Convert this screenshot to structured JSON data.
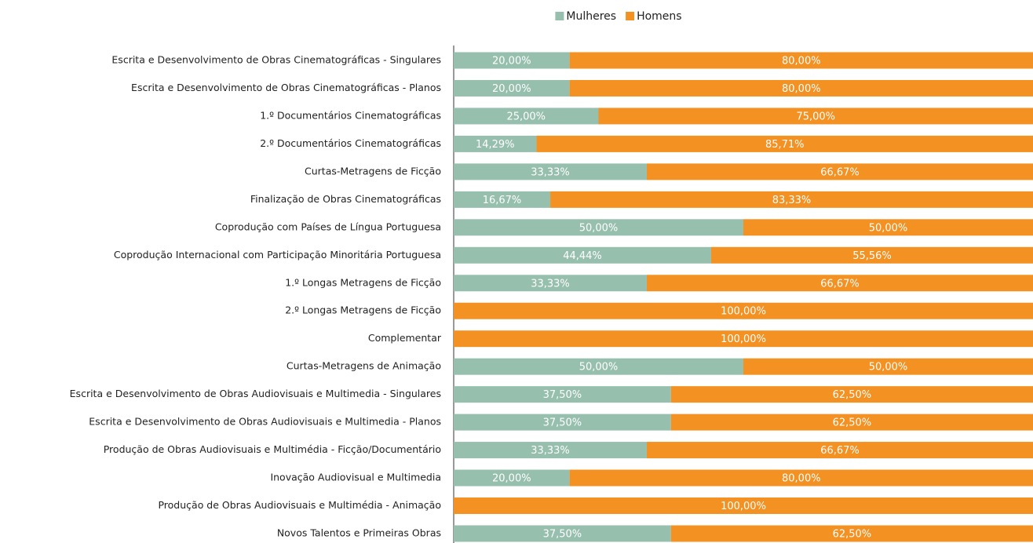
{
  "chart_data": {
    "type": "stacked-bar-horizontal",
    "categories": [
      "Escrita e Desenvolvimento de Obras Cinematográficas - Singulares",
      "Escrita e Desenvolvimento de Obras Cinematográficas - Planos",
      "1.º Documentários Cinematográficas",
      "2.º Documentários Cinematográficas",
      "Curtas-Metragens de Ficção",
      "Finalização de Obras Cinematográficas",
      "Coprodução com Países de Língua Portuguesa",
      "Coprodução Internacional com Participação Minoritária Portuguesa",
      "1.º Longas Metragens de Ficção",
      "2.º Longas Metragens de Ficção",
      "Complementar",
      "Curtas-Metragens de Animação",
      "Escrita e Desenvolvimento de Obras Audiovisuais e Multimedia - Singulares",
      "Escrita e Desenvolvimento de Obras Audiovisuais e Multimedia - Planos",
      "Produção de Obras Audiovisuais e Multimédia - Ficção/Documentário",
      "Inovação Audiovisual e Multimedia",
      "Produção de Obras Audiovisuais e Multimédia - Animação",
      "Novos Talentos e Primeiras Obras"
    ],
    "series": [
      {
        "name": "Mulheres",
        "color": "#96bfae",
        "values": [
          20,
          20,
          25,
          14.29,
          33.33,
          16.67,
          50,
          44.44,
          33.33,
          0,
          0,
          50,
          37.5,
          37.5,
          33.33,
          20,
          0,
          37.5
        ],
        "value_labels": [
          "20,00%",
          "20,00%",
          "25,00%",
          "14,29%",
          "33,33%",
          "16,67%",
          "50,00%",
          "44,44%",
          "33,33%",
          null,
          null,
          "50,00%",
          "37,50%",
          "37,50%",
          "33,33%",
          "20,00%",
          null,
          "37,50%"
        ]
      },
      {
        "name": "Homens",
        "color": "#f39122",
        "values": [
          80,
          80,
          75,
          85.71,
          66.67,
          83.33,
          50,
          55.56,
          66.67,
          100,
          100,
          50,
          62.5,
          62.5,
          66.67,
          80,
          100,
          62.5
        ],
        "value_labels": [
          "80,00%",
          "80,00%",
          "75,00%",
          "85,71%",
          "66,67%",
          "83,33%",
          "50,00%",
          "55,56%",
          "66,67%",
          "100,00%",
          "100,00%",
          "50,00%",
          "62,50%",
          "62,50%",
          "66,67%",
          "80,00%",
          "100,00%",
          "62,50%"
        ]
      }
    ],
    "xlim": [
      0,
      100
    ],
    "legend": "top"
  }
}
